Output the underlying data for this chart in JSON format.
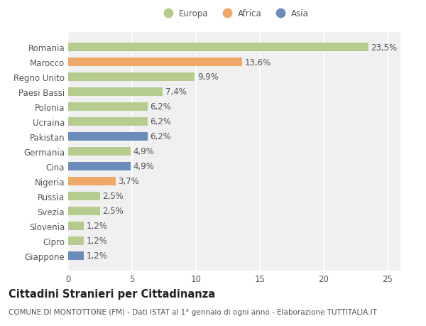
{
  "categories": [
    "Giappone",
    "Cipro",
    "Slovenia",
    "Svezia",
    "Russia",
    "Nigeria",
    "Cina",
    "Germania",
    "Pakistan",
    "Ucraina",
    "Polonia",
    "Paesi Bassi",
    "Regno Unito",
    "Marocco",
    "Romania"
  ],
  "values": [
    1.2,
    1.2,
    1.2,
    2.5,
    2.5,
    3.7,
    4.9,
    4.9,
    6.2,
    6.2,
    6.2,
    7.4,
    9.9,
    13.6,
    23.5
  ],
  "labels": [
    "1,2%",
    "1,2%",
    "1,2%",
    "2,5%",
    "2,5%",
    "3,7%",
    "4,9%",
    "4,9%",
    "6,2%",
    "6,2%",
    "6,2%",
    "7,4%",
    "9,9%",
    "13,6%",
    "23,5%"
  ],
  "continents": [
    "Asia",
    "Europa",
    "Europa",
    "Europa",
    "Europa",
    "Africa",
    "Asia",
    "Europa",
    "Asia",
    "Europa",
    "Europa",
    "Europa",
    "Europa",
    "Africa",
    "Europa"
  ],
  "colors": {
    "Europa": "#b5cc8e",
    "Africa": "#f0a868",
    "Asia": "#6b8cba"
  },
  "title": "Cittadini Stranieri per Cittadinanza",
  "subtitle": "COMUNE DI MONTOTTONE (FM) - Dati ISTAT al 1° gennaio di ogni anno - Elaborazione TUTTITALIA.IT",
  "xlim": [
    0,
    26
  ],
  "xticks": [
    0,
    5,
    10,
    15,
    20,
    25
  ],
  "background_color": "#ffffff",
  "plot_bg_color": "#f0f0f0",
  "bar_height": 0.55,
  "label_fontsize": 8.5,
  "tick_fontsize": 8.5,
  "title_fontsize": 10.5,
  "subtitle_fontsize": 7.5
}
